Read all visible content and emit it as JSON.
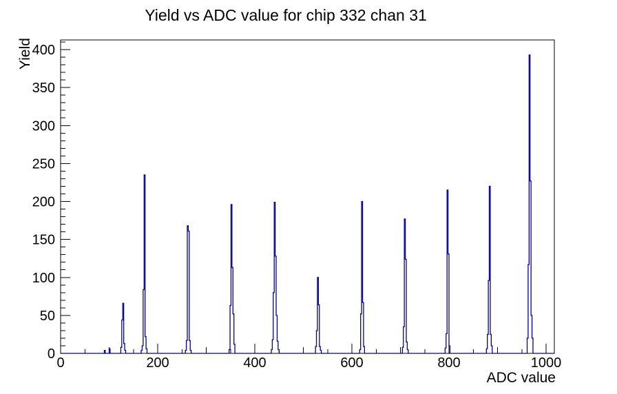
{
  "title": "Yield vs ADC value for chip 332 chan 31",
  "chart_data": {
    "type": "bar",
    "title": "Yield vs ADC value for chip 332 chan 31",
    "xlabel": "ADC value",
    "ylabel": "Yield",
    "xlim": [
      0,
      1017
    ],
    "ylim": [
      0,
      412.7
    ],
    "grid": false,
    "legend": false,
    "line_color": "#000099",
    "axis_color": "#000000",
    "x_major_ticks": [
      0,
      200,
      400,
      600,
      800,
      1000
    ],
    "x_medium_ticks": [
      100,
      300,
      500,
      700,
      900
    ],
    "x_minor_ticks": [
      50,
      150,
      250,
      350,
      450,
      550,
      650,
      750,
      850,
      950
    ],
    "y_major_ticks": [
      0,
      50,
      100,
      150,
      200,
      250,
      300,
      350,
      400
    ],
    "y_minor_step": 10,
    "bin_width": 2,
    "bins": [
      [
        91,
        4
      ],
      [
        101,
        6
      ],
      [
        125,
        8
      ],
      [
        127,
        44
      ],
      [
        129,
        66
      ],
      [
        131,
        13
      ],
      [
        133,
        4
      ],
      [
        167,
        4
      ],
      [
        169,
        10
      ],
      [
        171,
        84
      ],
      [
        173,
        235
      ],
      [
        175,
        22
      ],
      [
        177,
        6
      ],
      [
        258,
        4
      ],
      [
        260,
        17
      ],
      [
        262,
        168
      ],
      [
        264,
        161
      ],
      [
        266,
        17
      ],
      [
        268,
        4
      ],
      [
        348,
        5
      ],
      [
        350,
        63
      ],
      [
        352,
        196
      ],
      [
        354,
        113
      ],
      [
        356,
        52
      ],
      [
        358,
        12
      ],
      [
        435,
        5
      ],
      [
        437,
        18
      ],
      [
        439,
        80
      ],
      [
        441,
        199
      ],
      [
        443,
        128
      ],
      [
        445,
        50
      ],
      [
        447,
        16
      ],
      [
        449,
        5
      ],
      [
        526,
        9
      ],
      [
        528,
        30
      ],
      [
        530,
        100
      ],
      [
        532,
        64
      ],
      [
        534,
        9
      ],
      [
        536,
        4
      ],
      [
        617,
        5
      ],
      [
        619,
        52
      ],
      [
        621,
        200
      ],
      [
        623,
        67
      ],
      [
        625,
        9
      ],
      [
        705,
        8
      ],
      [
        707,
        35
      ],
      [
        709,
        177
      ],
      [
        711,
        124
      ],
      [
        713,
        15
      ],
      [
        715,
        5
      ],
      [
        793,
        7
      ],
      [
        795,
        26
      ],
      [
        797,
        215
      ],
      [
        799,
        131
      ],
      [
        801,
        10
      ],
      [
        878,
        6
      ],
      [
        880,
        25
      ],
      [
        882,
        96
      ],
      [
        884,
        220
      ],
      [
        886,
        25
      ],
      [
        888,
        10
      ],
      [
        962,
        20
      ],
      [
        964,
        117
      ],
      [
        966,
        393
      ],
      [
        968,
        227
      ],
      [
        970,
        50
      ],
      [
        972,
        20
      ]
    ]
  }
}
